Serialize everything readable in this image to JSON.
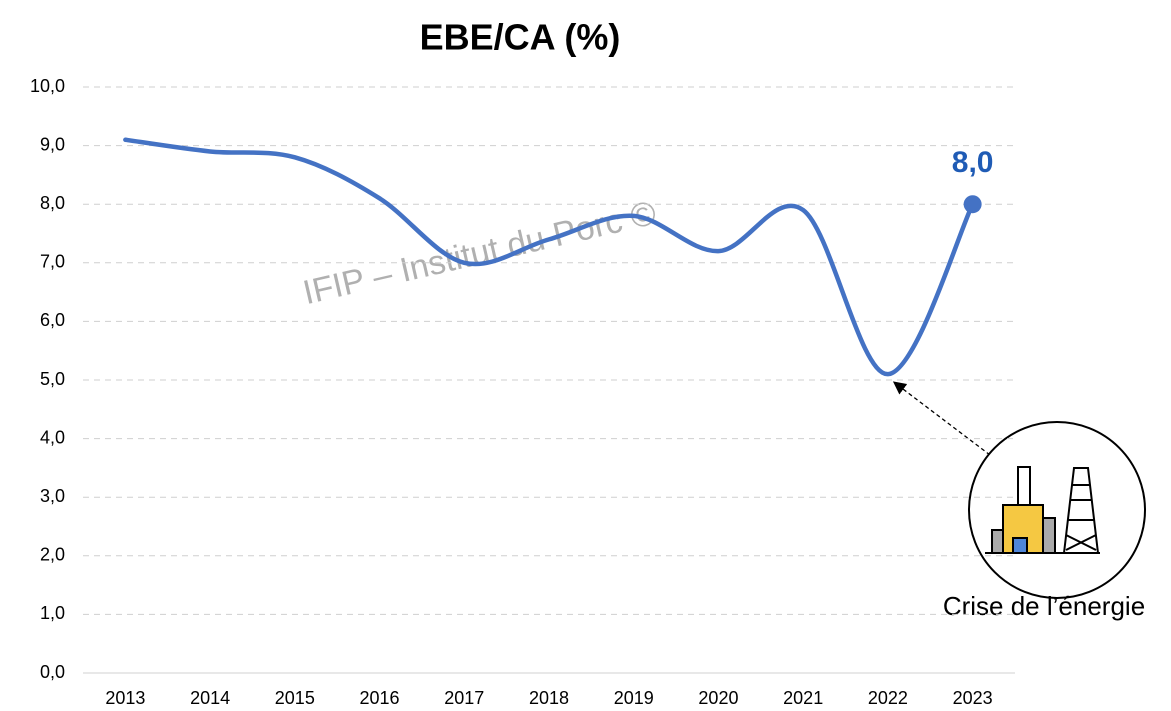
{
  "chart_data": {
    "type": "line",
    "title": "EBE/CA (%)",
    "categories": [
      "2013",
      "2014",
      "2015",
      "2016",
      "2017",
      "2018",
      "2019",
      "2020",
      "2021",
      "2022",
      "2023"
    ],
    "series": [
      {
        "name": "EBE/CA",
        "color": "#4472c4",
        "values": [
          9.1,
          8.9,
          8.8,
          8.1,
          7.0,
          7.4,
          7.8,
          7.2,
          7.9,
          5.1,
          8.0
        ],
        "value_labels": [
          null,
          null,
          null,
          null,
          null,
          null,
          null,
          null,
          null,
          null,
          "8,0"
        ]
      }
    ],
    "ylim": [
      0,
      10
    ],
    "yticks": [
      {
        "value": 0,
        "label": "0,0"
      },
      {
        "value": 1,
        "label": "1,0"
      },
      {
        "value": 2,
        "label": "2,0"
      },
      {
        "value": 3,
        "label": "3,0"
      },
      {
        "value": 4,
        "label": "4,0"
      },
      {
        "value": 5,
        "label": "5,0"
      },
      {
        "value": 6,
        "label": "6,0"
      },
      {
        "value": 7,
        "label": "7,0"
      },
      {
        "value": 8,
        "label": "8,0"
      },
      {
        "value": 9,
        "label": "9,0"
      },
      {
        "value": 10,
        "label": "10,0"
      }
    ],
    "grid": true,
    "smooth": true,
    "annotations": [
      "IFIP – Institut du Porc ©",
      "Crise de l’énergie"
    ]
  }
}
